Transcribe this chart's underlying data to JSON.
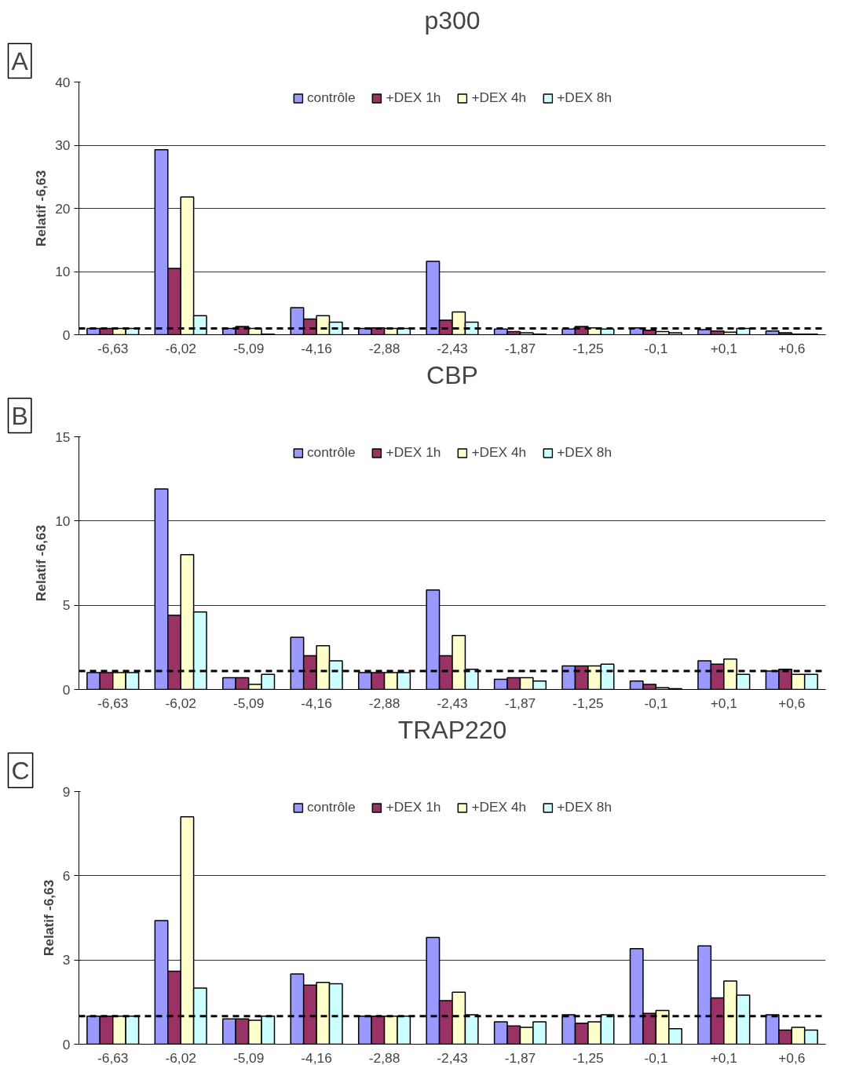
{
  "chart_data": [
    {
      "type": "bar",
      "title": "p300",
      "ylabel": "Relatif -6,63",
      "annotations": [
        "A"
      ],
      "categories": [
        "-6,63",
        "-6,02",
        "-5,09",
        "-4,16",
        "-2,88",
        "-2,43",
        "-1,87",
        "-1,25",
        "-0,1",
        "+0,1",
        "+0,6"
      ],
      "ylim": [
        0,
        40
      ],
      "yticks": [
        0,
        10,
        20,
        30,
        40
      ],
      "grid": "y",
      "legend": "top",
      "ref_lines": [
        {
          "axis": "y",
          "value": 1,
          "label": null,
          "line_style": "dashed",
          "color": "#000000"
        }
      ],
      "series": [
        {
          "name": "contrôle",
          "color": "#9999ff",
          "values": [
            1,
            29.3,
            1,
            4.3,
            1,
            11.6,
            0.9,
            0.9,
            1.1,
            0.8,
            0.6
          ]
        },
        {
          "name": "+DEX 1h",
          "color": "#993366",
          "values": [
            1,
            10.5,
            1.3,
            2.5,
            1.1,
            2.3,
            0.5,
            1.3,
            0.7,
            0.6,
            0.3
          ]
        },
        {
          "name": "+DEX 4h",
          "color": "#ffffcc",
          "values": [
            1,
            21.8,
            1,
            3,
            1,
            3.6,
            0.3,
            1.1,
            0.5,
            0.4,
            0.1
          ]
        },
        {
          "name": "+DEX 8h",
          "color": "#ccffff",
          "values": [
            1,
            3,
            0.1,
            2,
            1,
            2,
            0.1,
            0.9,
            0.3,
            1,
            0.1
          ]
        }
      ]
    },
    {
      "type": "bar",
      "title": "CBP",
      "ylabel": "Relatif -6,63",
      "annotations": [
        "B"
      ],
      "categories": [
        "-6,63",
        "-6,02",
        "-5,09",
        "-4,16",
        "-2,88",
        "-2,43",
        "-1,87",
        "-1,25",
        "-0,1",
        "+0,1",
        "+0,6"
      ],
      "ylim": [
        0,
        15
      ],
      "yticks": [
        0,
        5,
        10,
        15
      ],
      "grid": "y",
      "legend": "top",
      "ref_lines": [
        {
          "axis": "y",
          "value": 1.1,
          "label": null,
          "line_style": "dashed",
          "color": "#000000"
        }
      ],
      "series": [
        {
          "name": "contrôle",
          "color": "#9999ff",
          "values": [
            1,
            11.9,
            0.7,
            3.1,
            1,
            5.9,
            0.6,
            1.4,
            0.5,
            1.7,
            1.1
          ]
        },
        {
          "name": "+DEX 1h",
          "color": "#993366",
          "values": [
            1,
            4.4,
            0.7,
            2,
            1,
            2,
            0.7,
            1.4,
            0.3,
            1.5,
            1.2
          ]
        },
        {
          "name": "+DEX 4h",
          "color": "#ffffcc",
          "values": [
            1,
            8,
            0.3,
            2.6,
            1,
            3.2,
            0.7,
            1.4,
            0.1,
            1.8,
            0.9
          ]
        },
        {
          "name": "+DEX 8h",
          "color": "#ccffff",
          "values": [
            1,
            4.6,
            0.9,
            1.7,
            1,
            1.2,
            0.5,
            1.5,
            0.05,
            0.9,
            0.9
          ]
        }
      ]
    },
    {
      "type": "bar",
      "title": "TRAP220",
      "ylabel": "Relatif -6,63",
      "annotations": [
        "C"
      ],
      "categories": [
        "-6,63",
        "-6,02",
        "-5,09",
        "-4,16",
        "-2,88",
        "-2,43",
        "-1,87",
        "-1,25",
        "-0,1",
        "+0,1",
        "+0,6"
      ],
      "ylim": [
        0,
        9
      ],
      "yticks": [
        0,
        3,
        6,
        9
      ],
      "grid": "y",
      "legend": "top",
      "ref_lines": [
        {
          "axis": "y",
          "value": 1,
          "label": null,
          "line_style": "dashed",
          "color": "#000000"
        }
      ],
      "series": [
        {
          "name": "contrôle",
          "color": "#9999ff",
          "values": [
            1,
            4.4,
            0.9,
            2.5,
            1,
            3.8,
            0.8,
            1.05,
            3.4,
            3.5,
            1.05
          ]
        },
        {
          "name": "+DEX 1h",
          "color": "#993366",
          "values": [
            1,
            2.6,
            0.9,
            2.1,
            1,
            1.55,
            0.65,
            0.75,
            1.1,
            1.65,
            0.5
          ]
        },
        {
          "name": "+DEX 4h",
          "color": "#ffffcc",
          "values": [
            1,
            8.1,
            0.85,
            2.2,
            1,
            1.85,
            0.6,
            0.8,
            1.2,
            2.25,
            0.6
          ]
        },
        {
          "name": "+DEX 8h",
          "color": "#ccffff",
          "values": [
            1,
            2,
            1,
            2.15,
            1,
            1.05,
            0.8,
            1.05,
            0.55,
            1.75,
            0.5
          ]
        }
      ]
    }
  ]
}
